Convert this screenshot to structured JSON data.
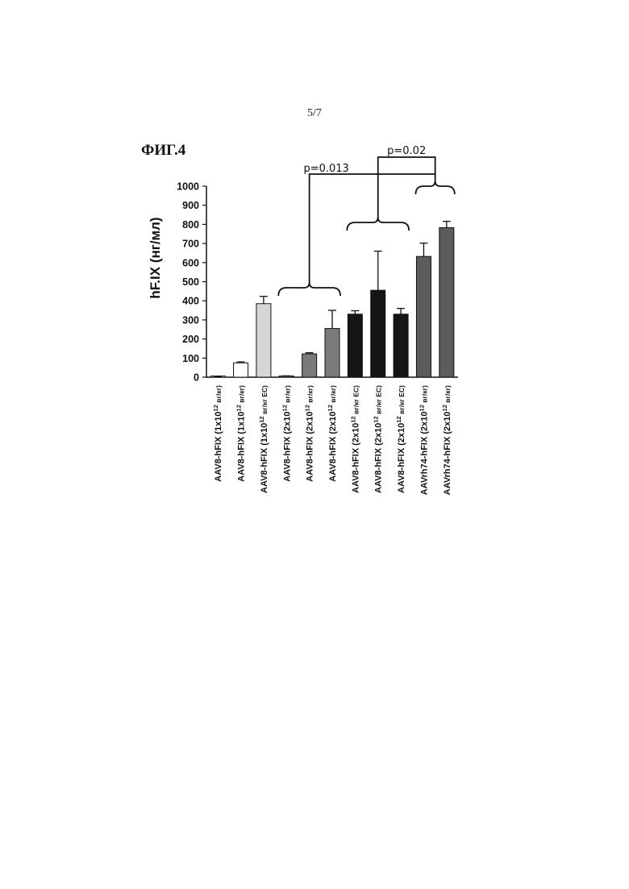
{
  "page_number": "5/7",
  "figure_title": "ФИГ.4",
  "chart_data": {
    "type": "bar",
    "ylabel": "hF.IX (нг/мл)",
    "xlabel": "",
    "ylim": [
      0,
      1000
    ],
    "yticks": [
      0,
      100,
      200,
      300,
      400,
      500,
      600,
      700,
      800,
      900,
      1000
    ],
    "categories": [
      {
        "base": "AAV8-hFIX (1x10",
        "sup": "12",
        "rest": " вг/кг)"
      },
      {
        "base": "AAV8-hFIX (1x10",
        "sup": "12",
        "rest": " вг/кг)"
      },
      {
        "base": "AAV8-hFIX (1x10",
        "sup": "12",
        "rest": " вг/кг EC)"
      },
      {
        "base": "AAV8-hFIX (2x10",
        "sup": "12",
        "rest": " вг/кг)"
      },
      {
        "base": "AAV8-hFIX (2x10",
        "sup": "12",
        "rest": " вг/кг)"
      },
      {
        "base": "AAV8-hFIX (2x10",
        "sup": "12",
        "rest": " вг/кг)"
      },
      {
        "base": "AAV8-hFIX (2x10",
        "sup": "12",
        "rest": " вг/кг EC)"
      },
      {
        "base": "AAV8-hFIX (2x10",
        "sup": "12",
        "rest": " вг/кг EC)"
      },
      {
        "base": "AAV8-hFIX (2x10",
        "sup": "12",
        "rest": " вг/кг EC)"
      },
      {
        "base": "AAVrh74-hFIX (2x10",
        "sup": "12",
        "rest": " вг/кг)"
      },
      {
        "base": "AAVrh74-hFIX (2x10",
        "sup": "12",
        "rest": " вг/кг)"
      }
    ],
    "values": [
      3,
      75,
      385,
      5,
      122,
      255,
      330,
      455,
      330,
      632,
      783
    ],
    "errors": [
      1,
      5,
      38,
      2,
      6,
      95,
      18,
      205,
      30,
      70,
      33
    ],
    "bar_colors": [
      "#ffffff",
      "#ffffff",
      "#d6d6d6",
      "#7a7a7a",
      "#7a7a7a",
      "#7a7a7a",
      "#151515",
      "#151515",
      "#151515",
      "#5c5c5c",
      "#5c5c5c"
    ],
    "annotations": [
      {
        "text": "p=0.013",
        "from_group": [
          3,
          5
        ],
        "to_group": [
          9,
          10
        ]
      },
      {
        "text": "p=0.02",
        "from_group": [
          6,
          8
        ],
        "to_group": [
          9,
          10
        ]
      }
    ]
  }
}
